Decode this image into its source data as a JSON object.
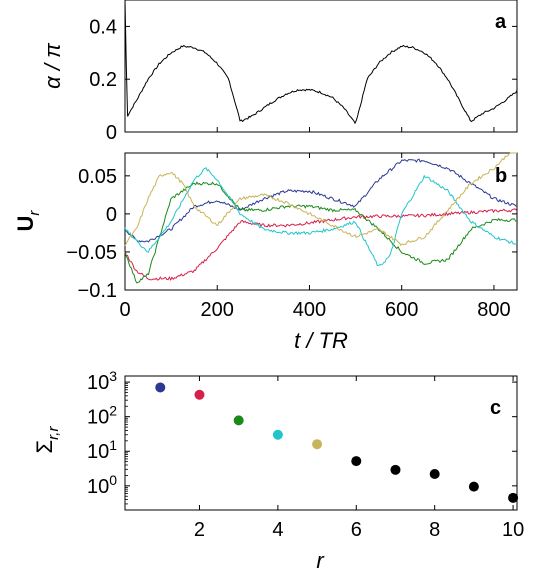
{
  "chart_data": [
    {
      "type": "line",
      "panel_label": "a",
      "ylabel": "α / π",
      "xlim": [
        0,
        850
      ],
      "ylim": [
        0,
        0.5
      ],
      "yticks": [
        0,
        0.2,
        0.4
      ],
      "ytick_labels": [
        "0",
        "0.2",
        "0.4"
      ],
      "x_tick_labels_visible": false,
      "series": [
        {
          "color": "#000000",
          "x": [
            0,
            5,
            25,
            50,
            75,
            100,
            125,
            150,
            175,
            200,
            225,
            250,
            275,
            300,
            325,
            350,
            375,
            400,
            425,
            450,
            475,
            500,
            525,
            550,
            575,
            600,
            625,
            650,
            675,
            700,
            725,
            750,
            775,
            800,
            825,
            850
          ],
          "y": [
            0.5,
            0.06,
            0.12,
            0.2,
            0.26,
            0.3,
            0.325,
            0.32,
            0.3,
            0.26,
            0.2,
            0.04,
            0.06,
            0.09,
            0.12,
            0.145,
            0.16,
            0.16,
            0.15,
            0.13,
            0.09,
            0.03,
            0.2,
            0.26,
            0.3,
            0.325,
            0.32,
            0.3,
            0.26,
            0.2,
            0.12,
            0.04,
            0.07,
            0.09,
            0.12,
            0.155
          ]
        }
      ]
    },
    {
      "type": "line",
      "panel_label": "b",
      "ylabel": "U_r",
      "xlabel": "t / TR",
      "xlim": [
        0,
        850
      ],
      "ylim": [
        -0.1,
        0.08
      ],
      "yticks": [
        -0.1,
        -0.05,
        0,
        0.05
      ],
      "ytick_labels": [
        "−0.1",
        "−0.05",
        "0",
        "0.05"
      ],
      "xticks": [
        0,
        200,
        400,
        600,
        800
      ],
      "xtick_labels": [
        "0",
        "200",
        "400",
        "600",
        "800"
      ],
      "series": [
        {
          "color": "#2b3990",
          "x": [
            0,
            25,
            50,
            100,
            150,
            200,
            250,
            300,
            350,
            400,
            450,
            500,
            550,
            600,
            650,
            700,
            750,
            800,
            850
          ],
          "y": [
            -0.02,
            -0.035,
            -0.036,
            -0.02,
            0.01,
            0.018,
            0.005,
            0.02,
            0.03,
            0.03,
            0.02,
            0.01,
            0.045,
            0.07,
            0.07,
            0.06,
            0.04,
            0.02,
            0.01
          ]
        },
        {
          "color": "#d6204b",
          "x": [
            0,
            25,
            50,
            100,
            150,
            200,
            250,
            300,
            350,
            400,
            450,
            500,
            550,
            600,
            650,
            700,
            750,
            800,
            850
          ],
          "y": [
            -0.05,
            -0.075,
            -0.085,
            -0.085,
            -0.075,
            -0.045,
            -0.01,
            -0.015,
            -0.015,
            -0.012,
            -0.008,
            -0.004,
            -0.003,
            -0.003,
            -0.002,
            0,
            0.002,
            0.004,
            0.005
          ]
        },
        {
          "color": "#1a8a1a",
          "x": [
            0,
            25,
            50,
            100,
            150,
            200,
            250,
            300,
            350,
            400,
            450,
            500,
            550,
            600,
            650,
            700,
            750,
            800,
            850
          ],
          "y": [
            -0.05,
            -0.09,
            -0.08,
            0.02,
            0.04,
            0.04,
            0.005,
            0.005,
            0.01,
            0.01,
            0.005,
            0.005,
            -0.02,
            -0.05,
            -0.065,
            -0.06,
            -0.02,
            -0.008,
            -0.008
          ]
        },
        {
          "color": "#22c4cc",
          "x": [
            0,
            25,
            50,
            100,
            150,
            175,
            200,
            250,
            300,
            350,
            400,
            450,
            500,
            520,
            550,
            575,
            600,
            650,
            700,
            750,
            800,
            850
          ],
          "y": [
            -0.02,
            -0.035,
            -0.05,
            -0.01,
            0.045,
            0.06,
            0.045,
            0,
            -0.02,
            -0.025,
            -0.025,
            -0.02,
            -0.01,
            -0.035,
            -0.07,
            -0.055,
            0,
            0.05,
            0.03,
            -0.01,
            -0.03,
            -0.04
          ]
        },
        {
          "color": "#c8b45a",
          "x": [
            0,
            25,
            50,
            75,
            100,
            125,
            150,
            200,
            250,
            300,
            350,
            400,
            450,
            500,
            550,
            600,
            650,
            700,
            750,
            800,
            850
          ],
          "y": [
            -0.04,
            -0.02,
            0.02,
            0.05,
            0.055,
            0.04,
            0.01,
            -0.015,
            0.02,
            0.025,
            0.015,
            0,
            -0.015,
            -0.03,
            -0.02,
            -0.04,
            -0.03,
            0.005,
            0.04,
            0.06,
            0.09
          ]
        }
      ]
    },
    {
      "type": "scatter",
      "panel_label": "c",
      "ylabel": "Σ_{r,r}",
      "xlabel": "r",
      "xlim": [
        0.1,
        10.1
      ],
      "y_scale": "log",
      "ylim": [
        0.2,
        1500
      ],
      "yticks": [
        1,
        10,
        100,
        1000
      ],
      "ytick_labels": [
        "10^0",
        "10^1",
        "10^2",
        "10^3"
      ],
      "xticks": [
        2,
        4,
        6,
        8,
        10
      ],
      "xtick_labels": [
        "2",
        "4",
        "6",
        "8",
        "10"
      ],
      "points": [
        {
          "x": 1,
          "y": 700,
          "color": "#2b3990"
        },
        {
          "x": 2,
          "y": 430,
          "color": "#d6204b"
        },
        {
          "x": 3,
          "y": 78,
          "color": "#1a8a1a"
        },
        {
          "x": 4,
          "y": 30,
          "color": "#22c4cc"
        },
        {
          "x": 5,
          "y": 16,
          "color": "#c8b45a"
        },
        {
          "x": 6,
          "y": 5.2,
          "color": "#000000"
        },
        {
          "x": 7,
          "y": 2.9,
          "color": "#000000"
        },
        {
          "x": 8,
          "y": 2.2,
          "color": "#000000"
        },
        {
          "x": 9,
          "y": 0.95,
          "color": "#000000"
        },
        {
          "x": 10,
          "y": 0.45,
          "color": "#000000"
        }
      ]
    }
  ]
}
